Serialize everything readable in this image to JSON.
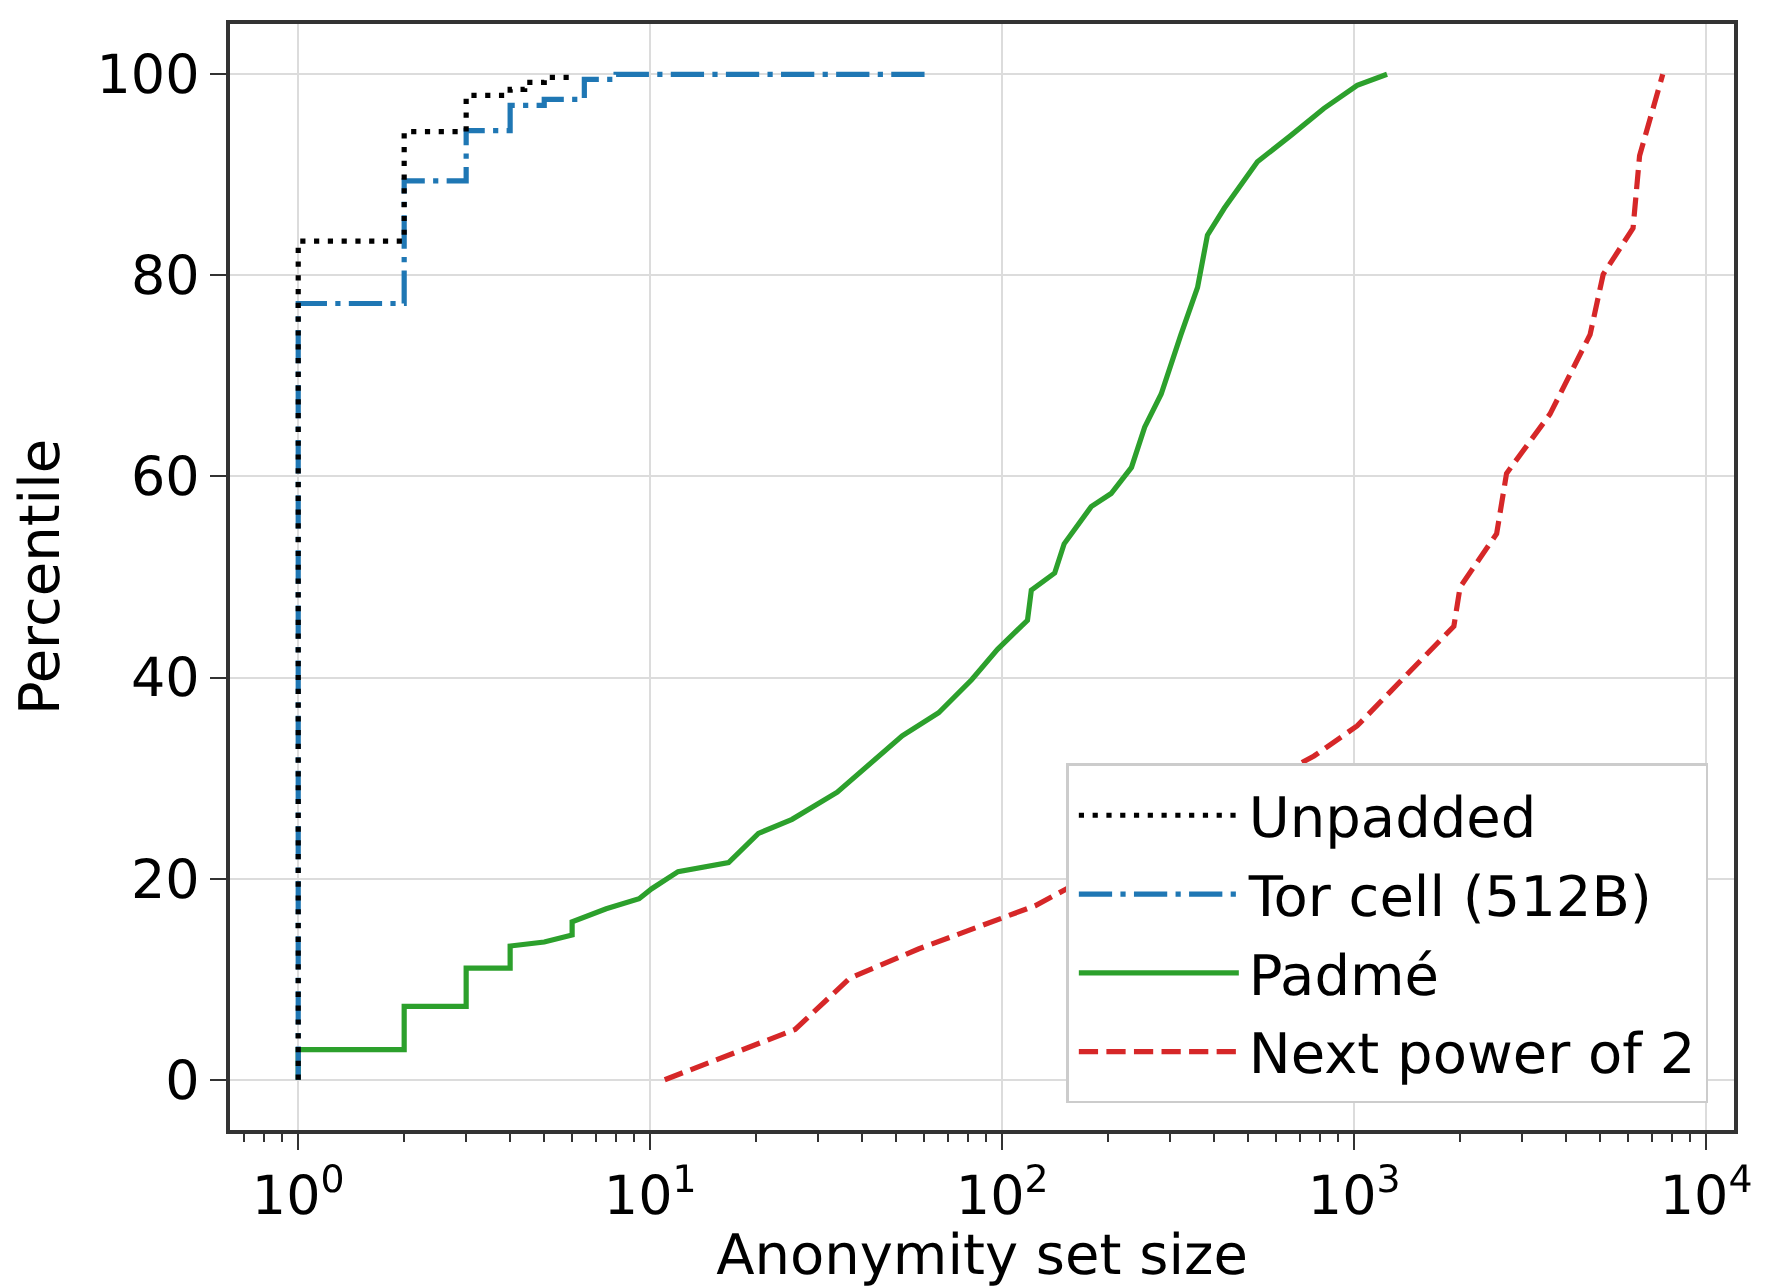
{
  "chart_data": {
    "type": "line",
    "xlabel": "Anonymity set size",
    "ylabel": "Percentile",
    "log": "x",
    "xlim": [
      0.64,
      12000
    ],
    "ylim": [
      -5,
      105
    ],
    "xticks": [
      {
        "value": 1,
        "label": "10$^{0}$"
      },
      {
        "value": 10,
        "label": "10$^{1}$"
      },
      {
        "value": 100,
        "label": "10$^{2}$"
      },
      {
        "value": 1000,
        "label": "10$^{3}$"
      },
      {
        "value": 10000,
        "label": "10$^{4}$"
      },
      {
        "value": 0.7,
        "label": null
      },
      {
        "value": 0.8,
        "label": null
      },
      {
        "value": 0.9,
        "label": null
      },
      {
        "value": 2,
        "label": null
      },
      {
        "value": 3,
        "label": null
      },
      {
        "value": 4,
        "label": null
      },
      {
        "value": 5,
        "label": null
      },
      {
        "value": 6,
        "label": null
      },
      {
        "value": 7,
        "label": null
      },
      {
        "value": 8,
        "label": null
      },
      {
        "value": 9,
        "label": null
      },
      {
        "value": 20,
        "label": null
      },
      {
        "value": 30,
        "label": null
      },
      {
        "value": 40,
        "label": null
      },
      {
        "value": 50,
        "label": null
      },
      {
        "value": 60,
        "label": null
      },
      {
        "value": 70,
        "label": null
      },
      {
        "value": 80,
        "label": null
      },
      {
        "value": 90,
        "label": null
      },
      {
        "value": 200,
        "label": null
      },
      {
        "value": 300,
        "label": null
      },
      {
        "value": 400,
        "label": null
      },
      {
        "value": 500,
        "label": null
      },
      {
        "value": 600,
        "label": null
      },
      {
        "value": 700,
        "label": null
      },
      {
        "value": 800,
        "label": null
      },
      {
        "value": 900,
        "label": null
      },
      {
        "value": 2000,
        "label": null
      },
      {
        "value": 3000,
        "label": null
      },
      {
        "value": 4000,
        "label": null
      },
      {
        "value": 5000,
        "label": null
      },
      {
        "value": 6000,
        "label": null
      },
      {
        "value": 7000,
        "label": null
      },
      {
        "value": 8000,
        "label": null
      },
      {
        "value": 9000,
        "label": null
      }
    ],
    "yticks": [
      0,
      20,
      40,
      60,
      80,
      100
    ],
    "grid": true,
    "legend": "bottom right",
    "series": [
      {
        "name": "Unpadded",
        "type": "step",
        "color": "#000000",
        "line_style": "dotted",
        "x": [
          1,
          1,
          2,
          3,
          4,
          4.4,
          5,
          6
        ],
        "values": [
          0,
          83.4,
          94.3,
          97.9,
          98.5,
          99.2,
          99.7,
          100
        ]
      },
      {
        "name": "Tor cell (512B)",
        "type": "step",
        "color": "#1f77b4",
        "line_style": "dashdot",
        "x": [
          1,
          1,
          2,
          3,
          4,
          5,
          6.5,
          8,
          62
        ],
        "values": [
          0,
          77.2,
          89.4,
          94.4,
          96.9,
          97.5,
          99.5,
          100,
          100
        ]
      },
      {
        "name": "Padmé",
        "color": "#2ca02c",
        "line_style": "solid",
        "x": [
          1,
          1,
          2,
          2,
          3,
          3,
          4,
          4,
          5,
          6,
          6,
          7.5,
          9.3,
          10.1,
          12,
          16.7,
          20.3,
          25.3,
          34,
          52,
          66,
          82,
          97,
          118,
          121,
          141,
          150,
          179,
          204,
          233,
          254,
          283,
          322,
          359,
          383,
          428,
          531,
          660,
          820,
          1020,
          1240
        ],
        "values": [
          0,
          3,
          3,
          7.3,
          7.3,
          11.1,
          11.1,
          13.3,
          13.7,
          14.4,
          15.7,
          17,
          18,
          19,
          20.7,
          21.6,
          24.5,
          25.9,
          28.6,
          34.2,
          36.5,
          39.8,
          42.8,
          45.7,
          48.7,
          50.4,
          53.3,
          57,
          58.3,
          60.9,
          64.9,
          68.2,
          74.1,
          78.8,
          84,
          86.7,
          91.3,
          93.9,
          96.6,
          98.9,
          100
        ]
      },
      {
        "name": "Next power of 2",
        "color": "#d62728",
        "line_style": "dashed",
        "x": [
          11,
          25.8,
          36.9,
          57.8,
          124,
          769,
          1020,
          1920,
          2000,
          2540,
          2710,
          3600,
          4680,
          5100,
          6200,
          6470,
          7530
        ],
        "values": [
          0,
          5,
          10.1,
          13,
          17.3,
          32.2,
          35.2,
          45.1,
          49,
          54.3,
          60.3,
          66.2,
          74.1,
          80.1,
          84.7,
          91.9,
          100
        ]
      }
    ]
  }
}
